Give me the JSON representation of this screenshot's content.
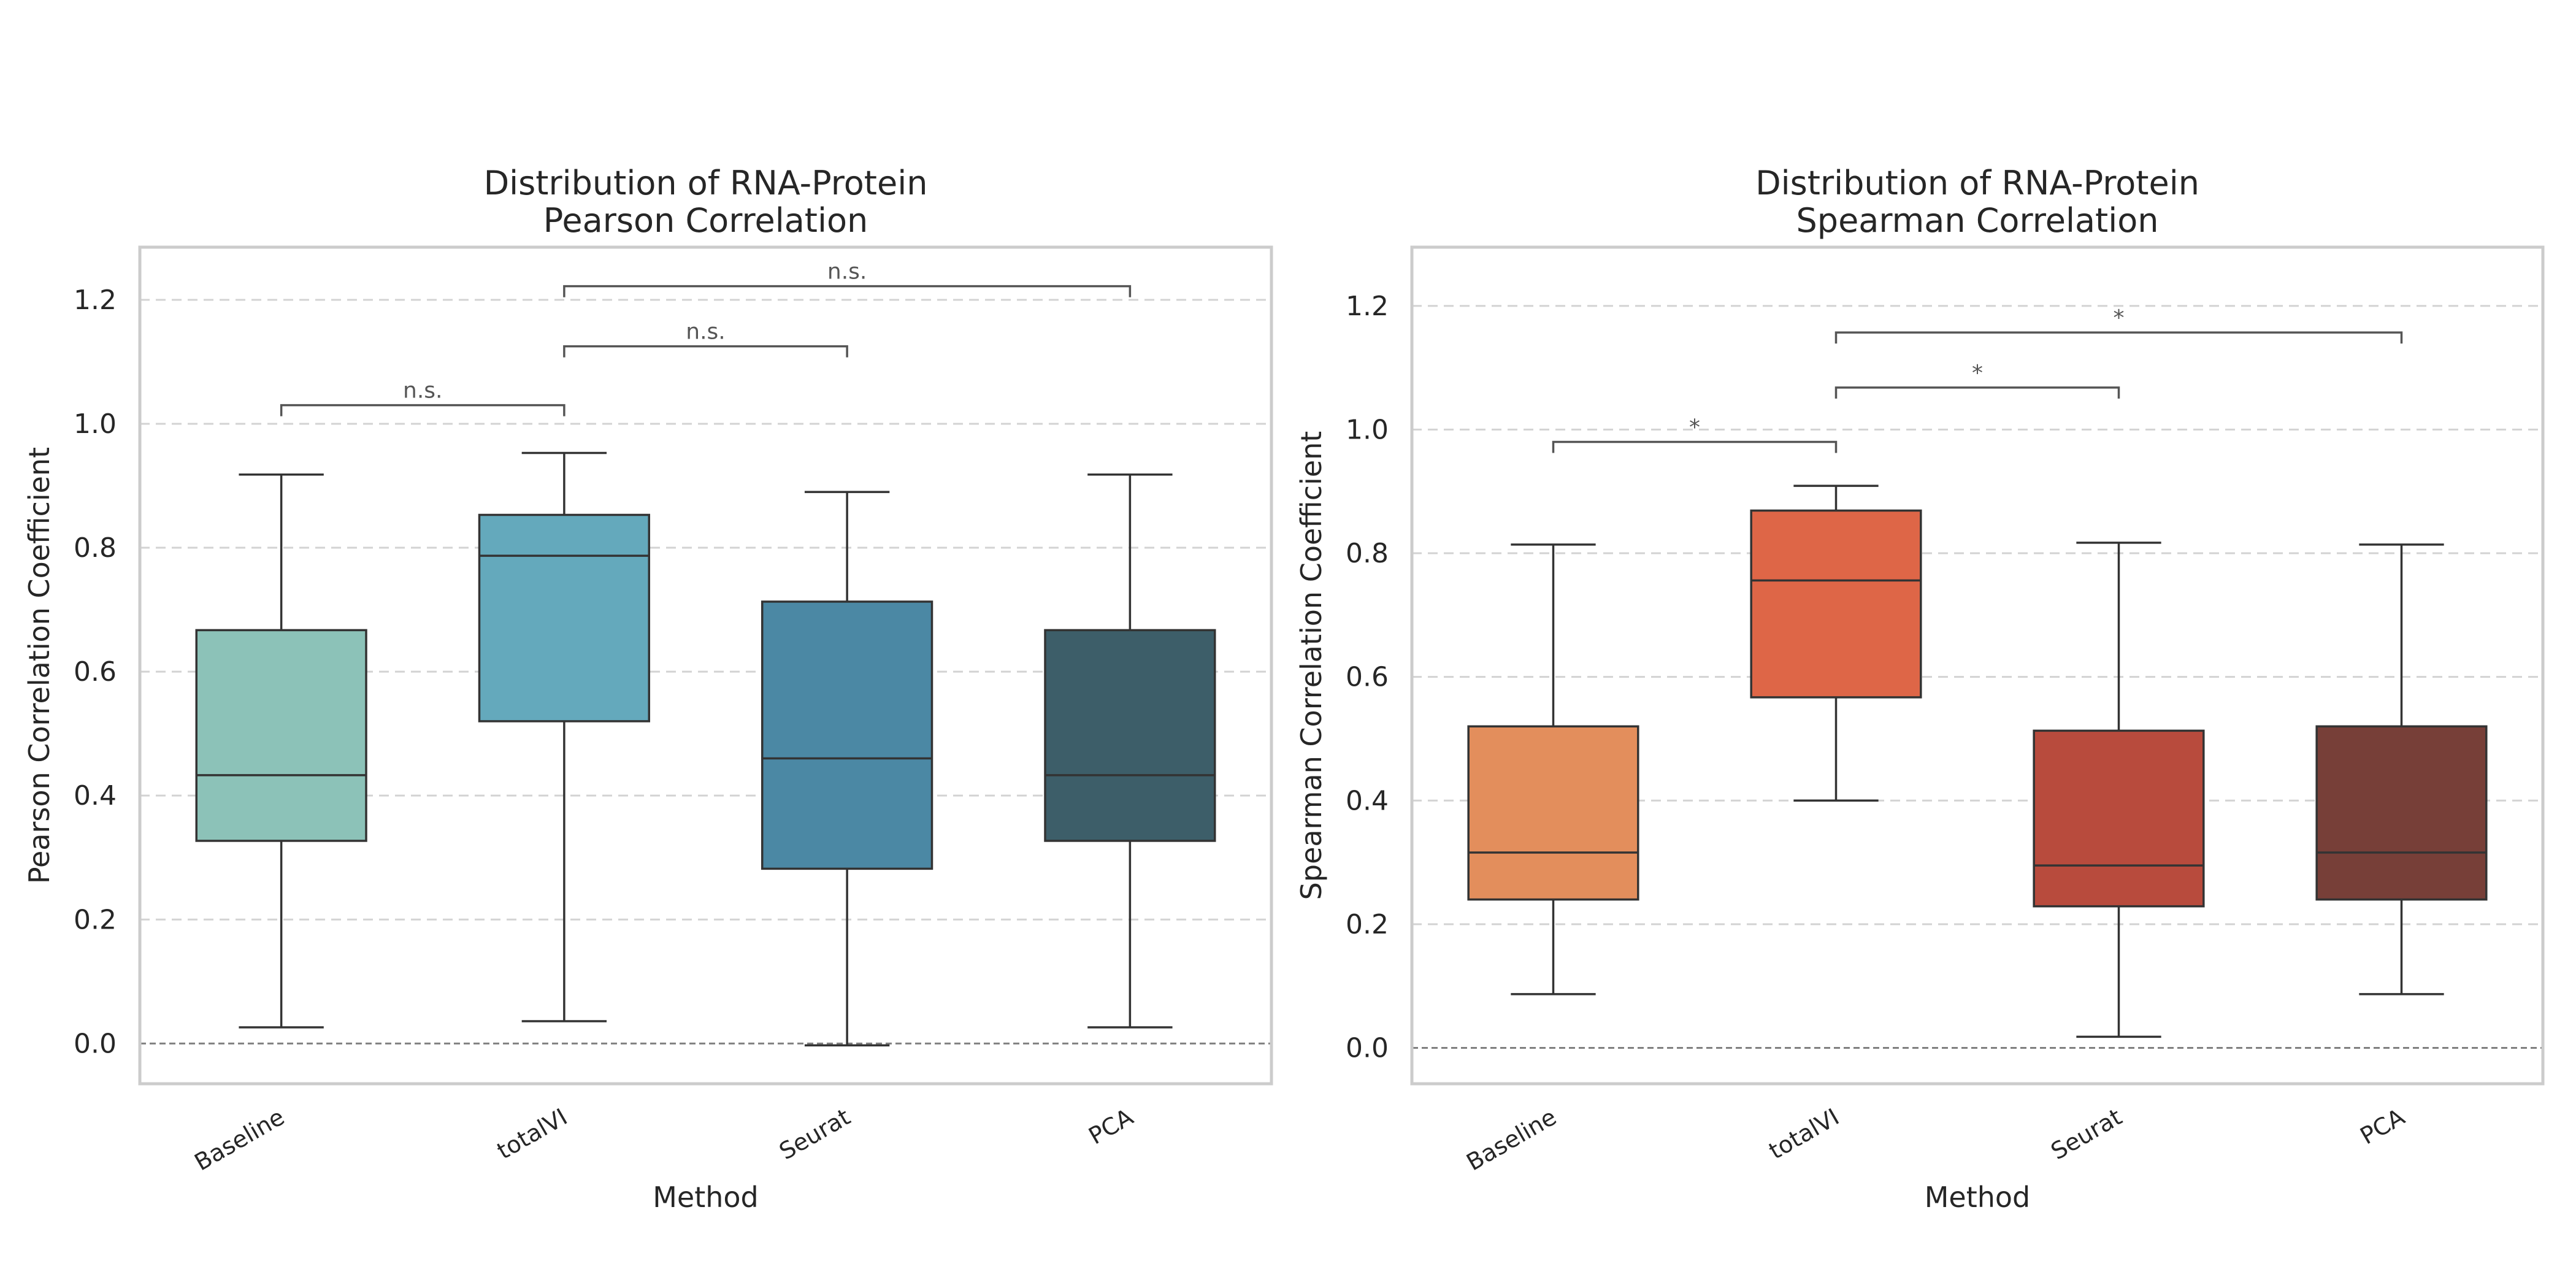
{
  "chart_data": [
    {
      "type": "box",
      "title_lines": [
        "Distribution of RNA-Protein",
        "Pearson Correlation"
      ],
      "xlabel": "Method",
      "ylabel": "Pearson Correlation Coefficient",
      "ylim": [
        -0.065,
        1.285
      ],
      "yticks": [
        0.0,
        0.2,
        0.4,
        0.6,
        0.8,
        1.0,
        1.2
      ],
      "ytick_labels": [
        "0.0",
        "0.2",
        "0.4",
        "0.6",
        "0.8",
        "1.0",
        "1.2"
      ],
      "grid": true,
      "categories": [
        "Baseline",
        "totalVI",
        "Seurat",
        "PCA"
      ],
      "colors": [
        "#8cc2b8",
        "#64a9bc",
        "#4b88a4",
        "#3d5e69"
      ],
      "boxes": [
        {
          "whisker_low": 0.026,
          "q1": 0.327,
          "median": 0.433,
          "q3": 0.667,
          "whisker_high": 0.918
        },
        {
          "whisker_low": 0.036,
          "q1": 0.52,
          "median": 0.787,
          "q3": 0.853,
          "whisker_high": 0.953
        },
        {
          "whisker_low": -0.003,
          "q1": 0.282,
          "median": 0.46,
          "q3": 0.713,
          "whisker_high": 0.89
        },
        {
          "whisker_low": 0.026,
          "q1": 0.327,
          "median": 0.433,
          "q3": 0.667,
          "whisker_high": 0.918
        }
      ],
      "significance": [
        {
          "from": 0,
          "to": 1,
          "y": 1.03,
          "label": "n.s."
        },
        {
          "from": 1,
          "to": 2,
          "y": 1.125,
          "label": "n.s."
        },
        {
          "from": 1,
          "to": 3,
          "y": 1.222,
          "label": "n.s."
        }
      ]
    },
    {
      "type": "box",
      "title_lines": [
        "Distribution of RNA-Protein",
        "Spearman Correlation"
      ],
      "xlabel": "Method",
      "ylabel": "Spearman Correlation Coefficient",
      "ylim": [
        -0.058,
        1.295
      ],
      "yticks": [
        0.0,
        0.2,
        0.4,
        0.6,
        0.8,
        1.0,
        1.2
      ],
      "ytick_labels": [
        "0.0",
        "0.2",
        "0.4",
        "0.6",
        "0.8",
        "1.0",
        "1.2"
      ],
      "grid": true,
      "categories": [
        "Baseline",
        "totalVI",
        "Seurat",
        "PCA"
      ],
      "colors": [
        "#e38e5c",
        "#de6647",
        "#b84b3d",
        "#773f38"
      ],
      "boxes": [
        {
          "whisker_low": 0.087,
          "q1": 0.24,
          "median": 0.316,
          "q3": 0.52,
          "whisker_high": 0.814
        },
        {
          "whisker_low": 0.4,
          "q1": 0.567,
          "median": 0.756,
          "q3": 0.869,
          "whisker_high": 0.909
        },
        {
          "whisker_low": 0.018,
          "q1": 0.229,
          "median": 0.295,
          "q3": 0.513,
          "whisker_high": 0.817
        },
        {
          "whisker_low": 0.087,
          "q1": 0.24,
          "median": 0.316,
          "q3": 0.52,
          "whisker_high": 0.814
        }
      ],
      "significance": [
        {
          "from": 0,
          "to": 1,
          "y": 0.98,
          "label": "*"
        },
        {
          "from": 1,
          "to": 2,
          "y": 1.068,
          "label": "*"
        },
        {
          "from": 1,
          "to": 3,
          "y": 1.157,
          "label": "*"
        }
      ]
    }
  ]
}
